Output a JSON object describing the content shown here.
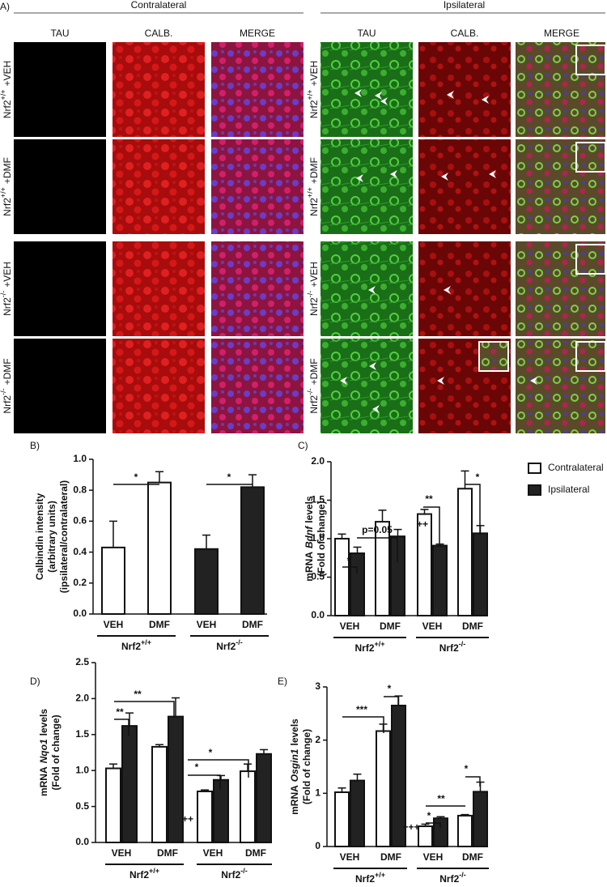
{
  "panel_a": {
    "label": "A)",
    "sides": [
      {
        "title": "Contralateral",
        "columns": [
          "TAU",
          "CALB.",
          "MERGE"
        ]
      },
      {
        "title": "Ipsilateral",
        "columns": [
          "TAU",
          "CALB.",
          "MERGE"
        ]
      }
    ],
    "rows": [
      {
        "gene": "Nrf2",
        "genotype": "+/+",
        "treatment": "+VEH"
      },
      {
        "gene": "Nrf2",
        "genotype": "+/+",
        "treatment": "+DMF"
      },
      {
        "gene": "Nrf2",
        "genotype": "-/-",
        "treatment": "+VEH"
      },
      {
        "gene": "Nrf2",
        "genotype": "-/-",
        "treatment": "+DMF"
      }
    ]
  },
  "chart_data": [
    {
      "type": "bar",
      "panel_label": "B)",
      "y_label": [
        "Calbindin intensity",
        "(arbitrary units)",
        "(ipsilateral/contralateral)"
      ],
      "categories": [
        "VEH",
        "DMF",
        "VEH",
        "DMF"
      ],
      "groups": [
        {
          "name": "Nrf2",
          "superscript": "+/+"
        },
        {
          "name": "Nrf2",
          "superscript": "-/-"
        }
      ],
      "values": [
        0.43,
        0.85,
        0.42,
        0.82
      ],
      "errors": [
        0.17,
        0.07,
        0.09,
        0.08
      ],
      "colors": [
        "#ffffff",
        "#ffffff",
        "#222222",
        "#222222"
      ],
      "ylim": [
        0,
        1.0
      ],
      "yticks": [
        {
          "value": 0,
          "label": "0.0"
        },
        0.2,
        0.4,
        0.6,
        0.8,
        {
          "value": 1.0,
          "label": "1.0"
        }
      ],
      "annotations": [
        "*",
        "*"
      ]
    },
    {
      "type": "grouped_bar",
      "panel_label": "C)",
      "y_label": {
        "prefix": "mRNA",
        "gene": "Bdnf",
        "suffix": "levels",
        "unit": "(Fold of change)"
      },
      "categories": [
        "VEH",
        "DMF",
        "VEH",
        "DMF"
      ],
      "groups": [
        {
          "name": "Nrf2",
          "superscript": "+/+"
        },
        {
          "name": "Nrf2",
          "superscript": "-/-"
        }
      ],
      "series": [
        {
          "name": "Contralateral",
          "color": "#ffffff",
          "values": [
            1.0,
            1.22,
            1.32,
            1.65
          ],
          "errors": [
            0.06,
            0.15,
            0.06,
            0.23
          ]
        },
        {
          "name": "Ipsilateral",
          "color": "#222222",
          "values": [
            0.81,
            1.03,
            0.91,
            1.07
          ],
          "errors": [
            0.08,
            0.09,
            0.02,
            0.1
          ]
        }
      ],
      "legend": true,
      "ylim": [
        0,
        2.0
      ],
      "yticks": [
        {
          "value": 0,
          "label": "0.0"
        },
        0.5,
        {
          "value": 1.0,
          "label": "1.0"
        },
        1.5,
        {
          "value": 2.0,
          "label": "2.0"
        }
      ],
      "annotations": [
        "*",
        "p=0.05",
        "**",
        "++",
        "*"
      ]
    },
    {
      "type": "grouped_bar",
      "panel_label": "D)",
      "y_label": {
        "prefix": "mRNA",
        "gene": "Nqo1",
        "suffix": "levels",
        "unit": "(Fold of change)"
      },
      "categories": [
        "VEH",
        "DMF",
        "VEH",
        "DMF"
      ],
      "groups": [
        {
          "name": "Nrf2",
          "superscript": "+/+"
        },
        {
          "name": "Nrf2",
          "superscript": "-/-"
        }
      ],
      "series": [
        {
          "color": "#ffffff",
          "values": [
            1.03,
            1.33,
            0.71,
            0.99
          ],
          "errors": [
            0.06,
            0.03,
            0.02,
            0.1
          ]
        },
        {
          "color": "#222222",
          "values": [
            1.62,
            1.75,
            0.87,
            1.23
          ],
          "errors": [
            0.18,
            0.26,
            0.06,
            0.06
          ]
        }
      ],
      "ylim": [
        0,
        2.5
      ],
      "yticks": [
        {
          "value": 0,
          "label": "0.0"
        },
        0.5,
        {
          "value": 1.0,
          "label": "1.0"
        },
        1.5,
        {
          "value": 2.0,
          "label": "2.0"
        },
        2.5
      ],
      "annotations": [
        "**",
        "**",
        "++",
        "*",
        "*"
      ]
    },
    {
      "type": "grouped_bar",
      "panel_label": "E)",
      "y_label": {
        "prefix": "mRNA",
        "gene": "Osgin1",
        "suffix": "levels",
        "unit": "(Fold of change)"
      },
      "categories": [
        "VEH",
        "DMF",
        "VEH",
        "DMF"
      ],
      "groups": [
        {
          "name": "Nrf2",
          "superscript": "+/+"
        },
        {
          "name": "Nrf2",
          "superscript": "-/-"
        }
      ],
      "series": [
        {
          "color": "#ffffff",
          "values": [
            1.02,
            2.17,
            0.38,
            0.58
          ],
          "errors": [
            0.08,
            0.13,
            0.04,
            0.02
          ]
        },
        {
          "color": "#222222",
          "values": [
            1.24,
            2.65,
            0.53,
            1.03
          ],
          "errors": [
            0.12,
            0.18,
            0.03,
            0.18
          ]
        }
      ],
      "ylim": [
        0,
        3
      ],
      "yticks": [
        0,
        1,
        2,
        3
      ],
      "annotations": [
        "***",
        "*",
        "+++",
        "*",
        "**",
        "*"
      ]
    }
  ]
}
